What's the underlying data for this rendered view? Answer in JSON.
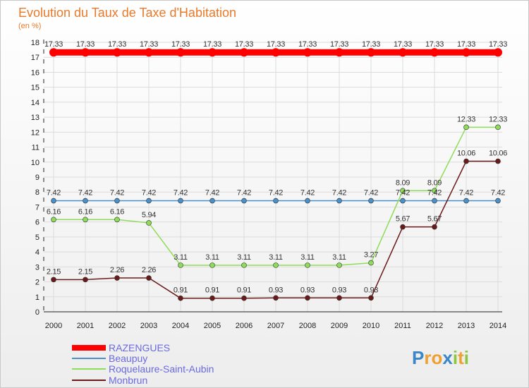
{
  "chart_data": {
    "type": "line",
    "title": "Evolution du Taux de Taxe d'Habitation",
    "subtitle": "(en %)",
    "x": [
      "2000",
      "2001",
      "2002",
      "2003",
      "2004",
      "2005",
      "2006",
      "2007",
      "2008",
      "2009",
      "2010",
      "2011",
      "2012",
      "2013",
      "2014"
    ],
    "ylim": [
      0,
      18
    ],
    "yticks": [
      0,
      1,
      2,
      3,
      4,
      5,
      6,
      7,
      8,
      9,
      10,
      11,
      12,
      13,
      14,
      15,
      16,
      17,
      18
    ],
    "grid": true,
    "legend_position": "bottom-left",
    "series": [
      {
        "name": "RAZENGUES",
        "color": "#ff0000",
        "values": [
          17.33,
          17.33,
          17.33,
          17.33,
          17.33,
          17.33,
          17.33,
          17.33,
          17.33,
          17.33,
          17.33,
          17.33,
          17.33,
          17.33,
          17.33
        ],
        "labels": [
          "17.33",
          "17.33",
          "17.33",
          "17.33",
          "17.33",
          "17.33",
          "17.33",
          "17.33",
          "17.33",
          "17.33",
          "17.33",
          "17.33",
          "17.33",
          "17.33",
          "17.33"
        ]
      },
      {
        "name": "Beaupuy",
        "color": "#4a90c8",
        "values": [
          7.42,
          7.42,
          7.42,
          7.42,
          7.42,
          7.42,
          7.42,
          7.42,
          7.42,
          7.42,
          7.42,
          7.42,
          7.42,
          7.42,
          7.42
        ],
        "labels": [
          "7.42",
          "7.42",
          "7.42",
          "7.42",
          "7.42",
          "7.42",
          "7.42",
          "7.42",
          "7.42",
          "7.42",
          "7.42",
          "7.42",
          "7.42",
          "7.42",
          "7.42"
        ]
      },
      {
        "name": "Roquelaure-Saint-Aubin",
        "color": "#8fdc5a",
        "values": [
          6.16,
          6.16,
          6.16,
          5.94,
          3.11,
          3.11,
          3.11,
          3.11,
          3.11,
          3.11,
          3.27,
          8.09,
          8.09,
          12.33,
          12.33
        ],
        "labels": [
          "6.16",
          "6.16",
          "6.16",
          "5.94",
          "3.11",
          "3.11",
          "3.11",
          "3.11",
          "3.11",
          "3.11",
          "3.27",
          "8.09",
          "8.09",
          "12.33",
          "12.33"
        ]
      },
      {
        "name": "Monbrun",
        "color": "#6a1a1a",
        "values": [
          2.15,
          2.15,
          2.26,
          2.26,
          0.91,
          0.91,
          0.91,
          0.93,
          0.93,
          0.93,
          0.93,
          5.67,
          5.67,
          10.06,
          10.06
        ],
        "labels": [
          "2.15",
          "2.15",
          "2.26",
          "2.26",
          "0.91",
          "0.91",
          "0.91",
          "0.93",
          "0.93",
          "0.93",
          "0.93",
          "5.67",
          "5.67",
          "10.06",
          "10.06"
        ]
      }
    ]
  },
  "branding": {
    "logo_text": "Proxiti"
  }
}
